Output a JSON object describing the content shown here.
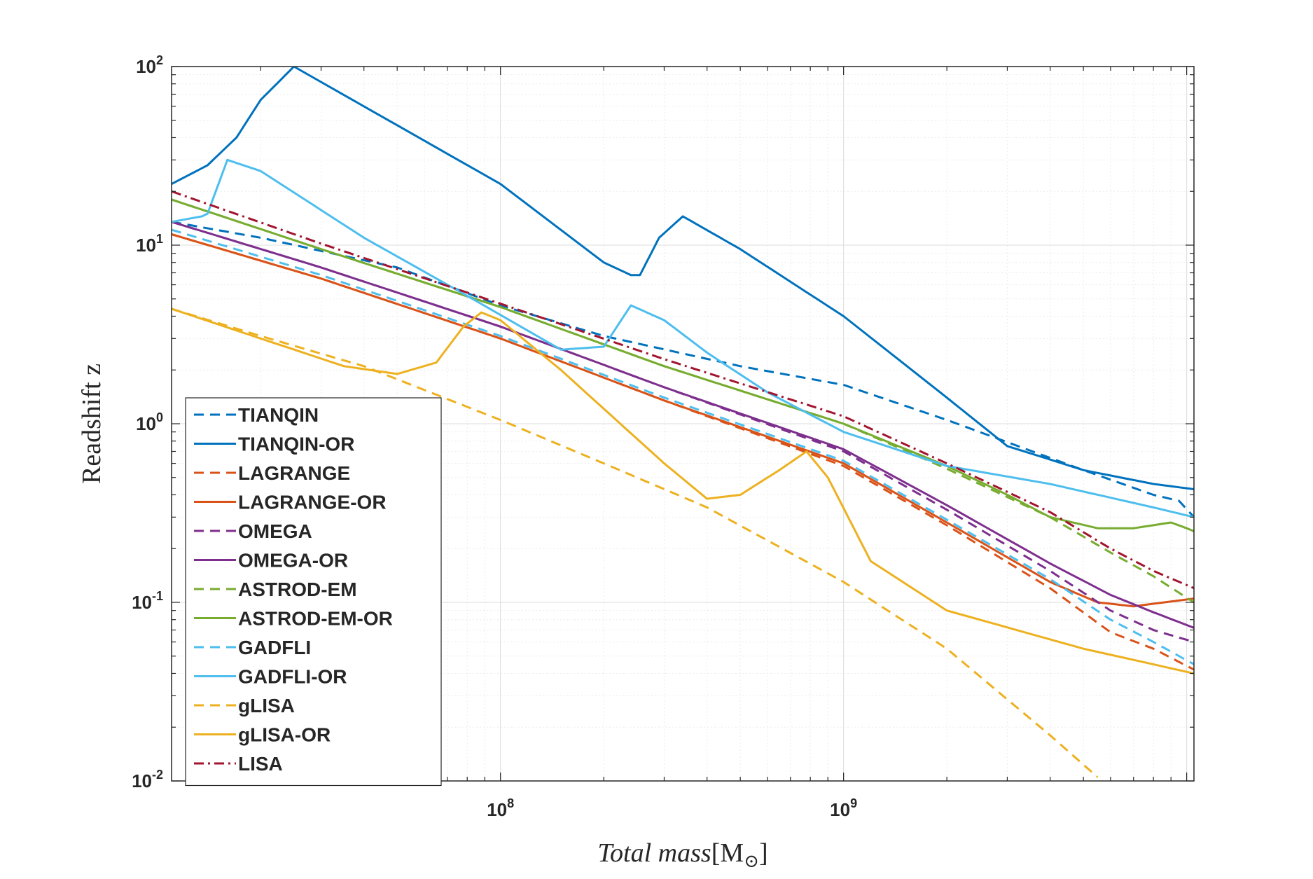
{
  "chart_data": {
    "type": "line",
    "xscale": "log",
    "yscale": "log",
    "xlim": [
      11000000,
      10500000000
    ],
    "ylim": [
      0.01,
      100
    ],
    "xlabel_italic": "Total  mass",
    "xlabel_unit": "[M",
    "xlabel_unit_sub": "⊙",
    "xlabel_unit_close": "]",
    "ylabel": "Readshift z",
    "grid": true,
    "minor_grid": true,
    "legend_position": "bottom-left",
    "x_ticks": [
      {
        "value": 100000000,
        "base": "10",
        "exp": "8"
      },
      {
        "value": 1000000000,
        "base": "10",
        "exp": "9"
      }
    ],
    "y_ticks": [
      {
        "value": 0.01,
        "base": "10",
        "exp": "-2"
      },
      {
        "value": 0.1,
        "base": "10",
        "exp": "-1"
      },
      {
        "value": 1,
        "base": "10",
        "exp": "0"
      },
      {
        "value": 10,
        "base": "10",
        "exp": "1"
      },
      {
        "value": 100,
        "base": "10",
        "exp": "2"
      }
    ],
    "series": [
      {
        "name": "TIANQIN",
        "color": "#0072BD",
        "style": "dashed",
        "x": [
          11000000,
          20000000,
          50000000,
          100000000,
          200000000,
          500000000,
          1000000000,
          2000000000,
          5000000000,
          8000000000,
          9500000000,
          10500000000
        ],
        "y": [
          13.5,
          11,
          7.5,
          4.6,
          3.1,
          2.1,
          1.65,
          1.05,
          0.55,
          0.4,
          0.37,
          0.3
        ]
      },
      {
        "name": "TIANQIN-OR",
        "color": "#0072BD",
        "style": "solid",
        "x": [
          11000000,
          14000000,
          17000000,
          20000000,
          25000000,
          100000000,
          200000000,
          240000000,
          255000000,
          290000000,
          340000000,
          500000000,
          1000000000,
          2000000000,
          3000000000,
          5000000000,
          8000000000,
          10500000000
        ],
        "y": [
          22,
          28,
          40,
          65,
          100,
          22,
          8,
          6.8,
          6.8,
          11,
          14.5,
          9.5,
          4,
          1.4,
          0.75,
          0.55,
          0.46,
          0.43
        ]
      },
      {
        "name": "LAGRANGE",
        "color": "#D95319",
        "style": "dashed",
        "x": [
          11000000,
          30000000,
          100000000,
          300000000,
          1000000000,
          2000000000,
          4000000000,
          6000000000,
          8000000000,
          10500000000
        ],
        "y": [
          11.5,
          6.5,
          3.0,
          1.35,
          0.58,
          0.27,
          0.12,
          0.068,
          0.055,
          0.042
        ]
      },
      {
        "name": "LAGRANGE-OR",
        "color": "#D95319",
        "style": "solid",
        "x": [
          11000000,
          30000000,
          100000000,
          300000000,
          1000000000,
          2000000000,
          4000000000,
          5500000000,
          7000000000,
          10500000000
        ],
        "y": [
          11.5,
          6.5,
          3.0,
          1.35,
          0.6,
          0.28,
          0.13,
          0.1,
          0.095,
          0.105
        ]
      },
      {
        "name": "OMEGA",
        "color": "#7E2F8E",
        "style": "dashed",
        "x": [
          11000000,
          30000000,
          100000000,
          300000000,
          1000000000,
          2000000000,
          4000000000,
          6000000000,
          8000000000,
          10500000000
        ],
        "y": [
          13.5,
          7.5,
          3.5,
          1.6,
          0.7,
          0.33,
          0.15,
          0.09,
          0.07,
          0.06
        ]
      },
      {
        "name": "OMEGA-OR",
        "color": "#7E2F8E",
        "style": "solid",
        "x": [
          11000000,
          30000000,
          100000000,
          300000000,
          1000000000,
          2000000000,
          4000000000,
          6000000000,
          8000000000,
          10500000000
        ],
        "y": [
          13.5,
          7.5,
          3.5,
          1.6,
          0.72,
          0.35,
          0.165,
          0.11,
          0.088,
          0.072
        ]
      },
      {
        "name": "ASTROD-EM",
        "color": "#77AC30",
        "style": "dashed",
        "x": [
          11000000,
          30000000,
          100000000,
          300000000,
          1000000000,
          2000000000,
          4000000000,
          6000000000,
          8000000000,
          10500000000
        ],
        "y": [
          18,
          9.5,
          4.5,
          2.1,
          1.0,
          0.56,
          0.3,
          0.19,
          0.14,
          0.1
        ]
      },
      {
        "name": "ASTROD-EM-OR",
        "color": "#77AC30",
        "style": "solid",
        "x": [
          11000000,
          30000000,
          100000000,
          300000000,
          1000000000,
          2000000000,
          3000000000,
          4000000000,
          5500000000,
          7000000000,
          9000000000,
          10000000000,
          10500000000
        ],
        "y": [
          18,
          9.5,
          4.5,
          2.1,
          1.0,
          0.58,
          0.4,
          0.3,
          0.26,
          0.26,
          0.28,
          0.26,
          0.25
        ]
      },
      {
        "name": "GADFLI",
        "color": "#4DBEEE",
        "style": "dashed",
        "x": [
          11000000,
          30000000,
          100000000,
          300000000,
          1000000000,
          2000000000,
          4000000000,
          6000000000,
          8000000000,
          10500000000
        ],
        "y": [
          12.2,
          6.8,
          3.1,
          1.4,
          0.62,
          0.29,
          0.135,
          0.08,
          0.06,
          0.045
        ]
      },
      {
        "name": "GADFLI-OR",
        "color": "#4DBEEE",
        "style": "solid",
        "x": [
          11000000,
          13500000,
          14000000,
          16000000,
          20000000,
          40000000,
          80000000,
          150000000,
          200000000,
          240000000,
          300000000,
          400000000,
          600000000,
          1000000000,
          2000000000,
          4000000000,
          8000000000,
          10500000000
        ],
        "y": [
          13.5,
          14.5,
          15,
          30,
          26,
          11,
          5.2,
          2.6,
          2.7,
          4.6,
          3.8,
          2.5,
          1.5,
          0.9,
          0.58,
          0.46,
          0.34,
          0.3
        ]
      },
      {
        "name": "gLISA",
        "color": "#EDB120",
        "style": "dashed",
        "x": [
          11000000,
          20000000,
          40000000,
          100000000,
          200000000,
          400000000,
          1000000000,
          2000000000,
          4000000000,
          5500000000
        ],
        "y": [
          4.4,
          3.1,
          2.1,
          1.05,
          0.6,
          0.34,
          0.13,
          0.055,
          0.018,
          0.0105
        ]
      },
      {
        "name": "gLISA-OR",
        "color": "#EDB120",
        "style": "solid",
        "x": [
          11000000,
          20000000,
          35000000,
          50000000,
          65000000,
          78000000,
          88000000,
          100000000,
          150000000,
          300000000,
          400000000,
          500000000,
          650000000,
          780000000,
          900000000,
          1200000000,
          2000000000,
          5000000000,
          10500000000
        ],
        "y": [
          4.4,
          3.0,
          2.1,
          1.9,
          2.2,
          3.5,
          4.2,
          3.8,
          2.0,
          0.6,
          0.38,
          0.4,
          0.55,
          0.7,
          0.5,
          0.17,
          0.09,
          0.055,
          0.04
        ]
      },
      {
        "name": "LISA",
        "color": "#A2142F",
        "style": "dashdot",
        "x": [
          11000000,
          30000000,
          100000000,
          300000000,
          1000000000,
          2000000000,
          4000000000,
          6000000000,
          8000000000,
          10500000000
        ],
        "y": [
          20,
          10.2,
          4.7,
          2.3,
          1.1,
          0.6,
          0.32,
          0.2,
          0.15,
          0.12
        ]
      }
    ]
  }
}
